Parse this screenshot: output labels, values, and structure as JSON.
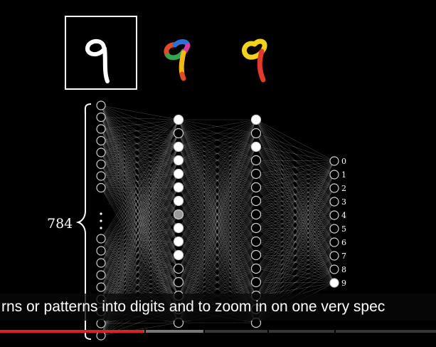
{
  "video": {
    "input_size_label": "784",
    "output_labels": [
      "0",
      "1",
      "2",
      "3",
      "4",
      "5",
      "6",
      "7",
      "8",
      "9"
    ],
    "caption": "rns or patterns into digits and to zoom in on one very spec",
    "progress_fraction": 0.33,
    "buffered_fraction": 0.47,
    "colors": {
      "accent": "#e02020",
      "background": "#000000",
      "node_stroke": "#d0d0d0",
      "edge": "#bbbbbb"
    }
  },
  "icons": {
    "input_digit": "digit-nine-thumbnail",
    "segment_digit_a": "multicolor-nine-icon",
    "segment_digit_b": "yellow-red-nine-icon"
  }
}
